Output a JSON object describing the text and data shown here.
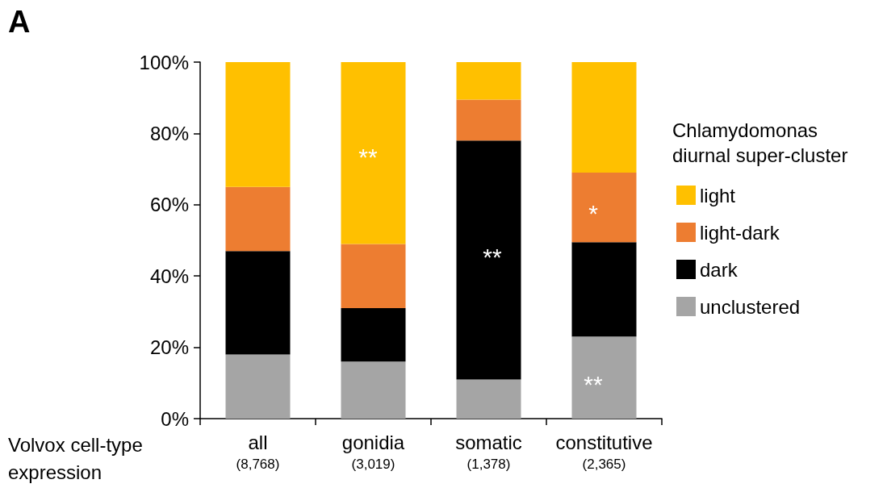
{
  "chart_data": {
    "type": "bar",
    "stacked": true,
    "categories": [
      "all\n(8,768)",
      "gonidia\n(3,019)",
      "somatic\n(1,378)",
      "constitutive\n(2,365)"
    ],
    "xlabel": "Volvox cell-type\nexpression",
    "legend_title": "Chlamydomonas\ndiurnal super-cluster",
    "series": [
      {
        "name": "unclustered",
        "color": "#a5a5a5",
        "values": [
          18,
          16,
          11,
          23
        ]
      },
      {
        "name": "dark",
        "color": "#000000",
        "values": [
          29,
          15,
          67,
          26.5
        ]
      },
      {
        "name": "light-dark",
        "color": "#ed7d31",
        "values": [
          18,
          18,
          11.5,
          19.5
        ]
      },
      {
        "name": "light",
        "color": "#ffc000",
        "values": [
          35,
          51,
          10.5,
          31
        ]
      }
    ],
    "ylim": [
      0,
      100
    ],
    "yticks": [
      {
        "value": 0,
        "label": "0%"
      },
      {
        "value": 20,
        "label": "20%"
      },
      {
        "value": 40,
        "label": "40%"
      },
      {
        "value": 60,
        "label": "60%"
      },
      {
        "value": 80,
        "label": "80%"
      },
      {
        "value": 100,
        "label": "100%"
      }
    ],
    "grid": false,
    "legend": "right",
    "annotations": [
      "A",
      "**",
      "**",
      "*",
      "**"
    ]
  }
}
